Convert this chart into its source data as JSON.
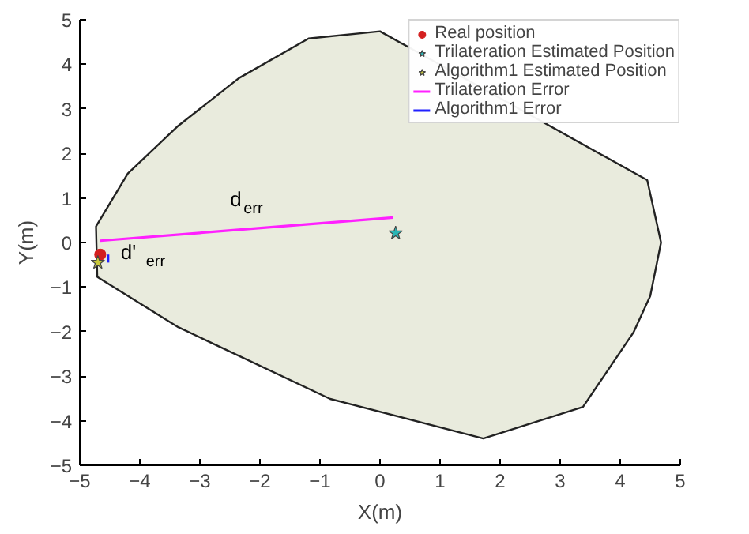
{
  "chart_data": {
    "type": "scatter",
    "xlabel": "X(m)",
    "ylabel": "Y(m)",
    "xlim": [
      -5,
      5
    ],
    "ylim": [
      -5,
      5
    ],
    "xticks": [
      -5,
      -4,
      -3,
      -2,
      -1,
      0,
      1,
      2,
      3,
      4,
      5
    ],
    "yticks": [
      -5,
      -4,
      -3,
      -2,
      -1,
      0,
      1,
      2,
      3,
      4,
      5
    ],
    "grid": false,
    "legend": "top right",
    "series": [
      {
        "type": "area",
        "color": "#e9ebdd",
        "x": [
          -4.73,
          -4.2,
          -3.36,
          -2.35,
          -1.19,
          0,
          4.45,
          4.68,
          4.5,
          4.22,
          3.38,
          1.72,
          -0.83,
          -3.36,
          -4.71
        ],
        "values": [
          0.36,
          1.55,
          2.62,
          3.69,
          4.58,
          4.74,
          1.4,
          0,
          -1.2,
          -2.02,
          -3.69,
          -4.4,
          -3.51,
          -1.9,
          -0.77
        ]
      },
      {
        "name": "Real position",
        "color": "#d42020",
        "marker": "circle",
        "x": [
          -4.66
        ],
        "values": [
          -0.27
        ]
      },
      {
        "name": "Trilateration Estimated Position",
        "color": "#2ab5b5",
        "marker": "star",
        "x": [
          0.26
        ],
        "values": [
          0.21
        ]
      },
      {
        "name": "Algorithm1 Estimated Position",
        "color": "#c8c83a",
        "marker": "star",
        "x": [
          -4.7
        ],
        "values": [
          -0.45
        ]
      },
      {
        "type": "line",
        "name": "Trilateration Error",
        "color": "#ff20ff",
        "x": [
          -4.66,
          0.22
        ],
        "values": [
          0.04,
          0.56
        ]
      },
      {
        "type": "line",
        "name": "Algorithm1 Error",
        "color": "#2020ff",
        "x": [
          -4.53,
          -4.53
        ],
        "values": [
          -0.27,
          -0.45
        ]
      }
    ],
    "annotations": [
      {
        "text": "d$_{err}$",
        "x": -2.55,
        "y": 0.265
      },
      {
        "text": "d'$_{err}$",
        "x": -4.53,
        "y": -0.36
      }
    ]
  }
}
